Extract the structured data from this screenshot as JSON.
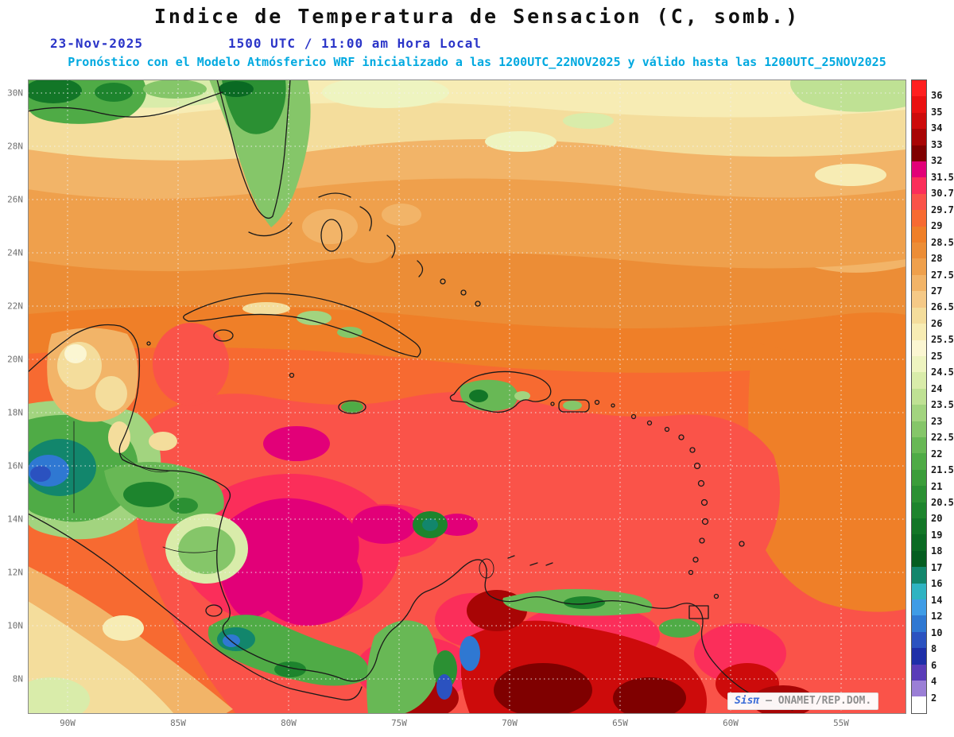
{
  "header": {
    "title": "Indice de Temperatura de Sensacion (C, somb.)",
    "date": "23-Nov-2025",
    "time": "1500 UTC / 11:00 am Hora Local",
    "forecast": "Pronóstico con el Modelo Atmósferico WRF inicializado a las 1200UTC_22NOV2025 y válido hasta las 1200UTC_25NOV2025"
  },
  "map": {
    "lat_labels": [
      "30N",
      "28N",
      "26N",
      "24N",
      "22N",
      "20N",
      "18N",
      "16N",
      "14N",
      "12N",
      "10N",
      "8N"
    ],
    "lon_labels": [
      "90W",
      "85W",
      "80W",
      "75W",
      "70W",
      "65W",
      "60W",
      "55W"
    ],
    "watermark": {
      "brand": "Sisπ",
      "source": "– ONAMET/REP.DOM."
    }
  },
  "legend": {
    "units": "C",
    "labels": [
      "36",
      "35",
      "34",
      "33",
      "32",
      "31.5",
      "30.7",
      "29.7",
      "29",
      "28.5",
      "28",
      "27.5",
      "27",
      "26.5",
      "26",
      "25.5",
      "25",
      "24.5",
      "24",
      "23.5",
      "23",
      "22.5",
      "22",
      "21.5",
      "21",
      "20.5",
      "20",
      "19",
      "18",
      "17",
      "16",
      "14",
      "12",
      "10",
      "8",
      "6",
      "4",
      "2"
    ],
    "colors": [
      "#ff1f1f",
      "#ea1010",
      "#cd0b0b",
      "#a80505",
      "#7f0000",
      "#e20078",
      "#fb2e5a",
      "#fa5349",
      "#f76a31",
      "#ef7f28",
      "#ec8d36",
      "#efa04c",
      "#f2b468",
      "#f5c987",
      "#f4dd9c",
      "#f7ecb4",
      "#fbf6d2",
      "#eef4c0",
      "#d9ecaa",
      "#bfe194",
      "#a2d47f",
      "#85c669",
      "#68b855",
      "#4fab46",
      "#3b9d3a",
      "#2b9033",
      "#1d842d",
      "#127627",
      "#0a6a23",
      "#045d20",
      "#12866c",
      "#2fb3c2",
      "#3f9ce6",
      "#2f78d2",
      "#2b52c0",
      "#1e2fa8",
      "#5a3cb8",
      "#9b7fd6",
      "#ffffff"
    ]
  },
  "chart_data": {
    "type": "heatmap",
    "title": "Indice de Temperatura de Sensacion (C, somb.)",
    "model": "WRF",
    "valid_time": "23-Nov-2025 1500 UTC / 11:00 am Hora Local",
    "x_ticks": [
      "90W",
      "85W",
      "80W",
      "75W",
      "70W",
      "65W",
      "60W",
      "55W"
    ],
    "y_ticks": [
      "30N",
      "28N",
      "26N",
      "24N",
      "22N",
      "20N",
      "18N",
      "16N",
      "14N",
      "12N",
      "10N",
      "8N"
    ],
    "colorbar_levels": [
      36,
      35,
      34,
      33,
      32,
      31.5,
      30.7,
      29.7,
      29,
      28.5,
      28,
      27.5,
      27,
      26.5,
      26,
      25.5,
      25,
      24.5,
      24,
      23.5,
      23,
      22.5,
      22,
      21.5,
      21,
      20.5,
      20,
      19,
      18,
      17,
      16,
      14,
      12,
      10,
      8,
      6,
      4,
      2
    ],
    "legend_position": "right"
  }
}
